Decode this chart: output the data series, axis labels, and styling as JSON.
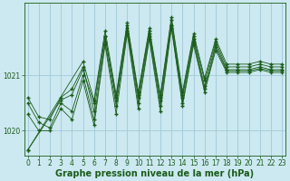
{
  "xlabel": "Graphe pression niveau de la mer (hPa)",
  "background_color": "#cce8f0",
  "grid_color": "#99c4d4",
  "line_color": "#1a5c1a",
  "marker": "+",
  "marker_size": 3.5,
  "marker_linewidth": 1.0,
  "ylim": [
    1019.55,
    1022.3
  ],
  "xlim": [
    -0.3,
    23.3
  ],
  "yticks": [
    1020,
    1021
  ],
  "xticks": [
    0,
    1,
    2,
    3,
    4,
    5,
    6,
    7,
    8,
    9,
    10,
    11,
    12,
    13,
    14,
    15,
    16,
    17,
    18,
    19,
    20,
    21,
    22,
    23
  ],
  "tick_fontsize": 5.5,
  "xlabel_fontsize": 7,
  "linewidth": 0.6,
  "figsize": [
    3.2,
    2.0
  ],
  "dpi": 100,
  "series": [
    {
      "x": [
        0,
        1,
        2,
        3,
        4,
        5,
        6,
        7,
        8,
        9,
        10,
        11,
        12,
        13,
        14,
        15,
        16,
        17,
        18,
        19,
        20,
        21,
        22,
        23
      ],
      "y": [
        1020.3,
        1020.0,
        1020.0,
        1020.4,
        1020.2,
        1020.9,
        1020.1,
        1021.55,
        1020.3,
        1021.75,
        1020.4,
        1021.65,
        1020.35,
        1021.85,
        1020.45,
        1021.55,
        1020.7,
        1021.45,
        1021.05,
        1021.05,
        1021.05,
        1021.1,
        1021.05,
        1021.05
      ]
    },
    {
      "x": [
        0,
        1,
        2,
        3,
        4,
        5,
        6,
        7,
        8,
        9,
        10,
        11,
        12,
        13,
        14,
        15,
        16,
        17,
        18,
        19,
        20,
        21,
        22,
        23
      ],
      "y": [
        1020.5,
        1020.15,
        1020.05,
        1020.5,
        1020.35,
        1021.0,
        1020.2,
        1021.6,
        1020.45,
        1021.8,
        1020.5,
        1021.7,
        1020.45,
        1021.9,
        1020.5,
        1021.6,
        1020.75,
        1021.5,
        1021.08,
        1021.08,
        1021.08,
        1021.12,
        1021.08,
        1021.08
      ]
    },
    {
      "x": [
        0,
        3,
        4,
        5,
        6,
        7,
        8,
        9,
        10,
        11,
        12,
        13,
        14,
        15,
        16,
        17,
        18,
        19,
        20,
        21,
        22,
        23
      ],
      "y": [
        1019.65,
        1020.55,
        1020.65,
        1021.1,
        1020.5,
        1021.7,
        1020.55,
        1021.85,
        1020.6,
        1021.75,
        1020.55,
        1021.9,
        1020.6,
        1021.65,
        1020.8,
        1021.55,
        1021.1,
        1021.1,
        1021.1,
        1021.15,
        1021.1,
        1021.1
      ]
    },
    {
      "x": [
        0,
        1,
        2,
        3,
        4,
        5,
        6,
        7,
        8,
        9,
        10,
        11,
        12,
        13,
        14,
        15,
        16,
        17,
        18,
        19,
        20,
        21,
        22,
        23
      ],
      "y": [
        1020.6,
        1020.25,
        1020.2,
        1020.6,
        1020.75,
        1021.15,
        1020.35,
        1021.7,
        1020.6,
        1021.9,
        1020.65,
        1021.8,
        1020.6,
        1022.0,
        1020.65,
        1021.7,
        1020.9,
        1021.6,
        1021.15,
        1021.15,
        1021.15,
        1021.2,
        1021.15,
        1021.15
      ]
    },
    {
      "x": [
        0,
        5,
        6,
        7,
        8,
        9,
        10,
        11,
        12,
        13,
        14,
        15,
        16,
        17,
        18,
        19,
        20,
        21,
        22,
        23
      ],
      "y": [
        1019.65,
        1021.25,
        1020.55,
        1021.8,
        1020.65,
        1021.95,
        1020.7,
        1021.85,
        1020.65,
        1022.05,
        1020.7,
        1021.75,
        1020.95,
        1021.65,
        1021.2,
        1021.2,
        1021.2,
        1021.25,
        1021.2,
        1021.2
      ]
    }
  ]
}
